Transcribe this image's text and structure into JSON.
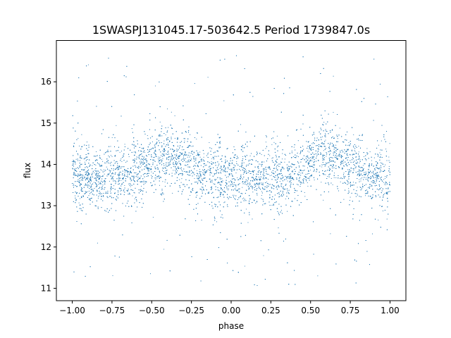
{
  "chart_data": {
    "type": "scatter",
    "title": "1SWASPJ131045.17-503642.5 Period 1739847.0s",
    "xlabel": "phase",
    "ylabel": "flux",
    "xlim": [
      -1.1,
      1.1
    ],
    "ylim": [
      10.7,
      17.0
    ],
    "xticks": [
      -1.0,
      -0.75,
      -0.5,
      -0.25,
      0.0,
      0.25,
      0.5,
      0.75,
      1.0
    ],
    "xtick_labels": [
      "−1.00",
      "−0.75",
      "−0.50",
      "−0.25",
      "0.00",
      "0.25",
      "0.50",
      "0.75",
      "1.00"
    ],
    "yticks": [
      11,
      12,
      13,
      14,
      15,
      16
    ],
    "ytick_labels": [
      "11",
      "12",
      "13",
      "14",
      "15",
      "16"
    ],
    "grid": false,
    "point_color": "#1f77b4",
    "series": [
      {
        "phase_range": [
          -1.0,
          1.0
        ],
        "baseline_flux": 13.7,
        "hump_phases": [
          -0.4,
          0.6
        ],
        "hump_amplitude": 0.5,
        "scatter_std": 0.35,
        "outlier_range": [
          11.0,
          16.7
        ]
      }
    ]
  }
}
